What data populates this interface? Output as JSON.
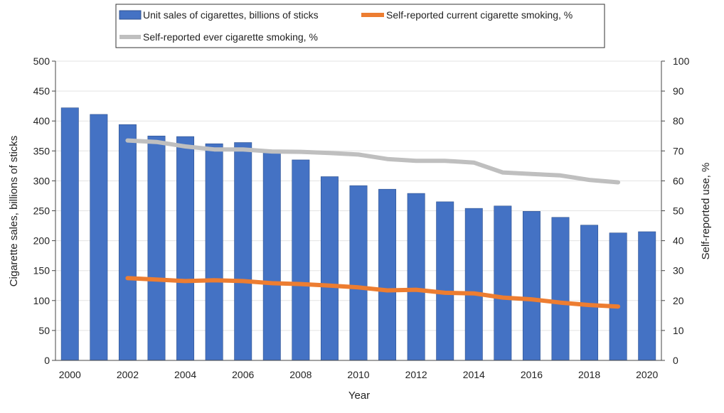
{
  "chart_data": {
    "type": "bar",
    "title": "",
    "xlabel": "Year",
    "ylabel_left": "Cigarette sales, billions of sticks",
    "ylabel_right": "Self-reported use, %",
    "ylim_left": [
      0,
      500
    ],
    "ylim_right": [
      0,
      100
    ],
    "yticks_left": [
      "0",
      "50",
      "100",
      "150",
      "200",
      "250",
      "300",
      "350",
      "400",
      "450",
      "500"
    ],
    "yticks_right": [
      "0",
      "10",
      "20",
      "30",
      "40",
      "50",
      "60",
      "70",
      "80",
      "90",
      "100"
    ],
    "categories": [
      "2000",
      "2001",
      "2002",
      "2003",
      "2004",
      "2005",
      "2006",
      "2007",
      "2008",
      "2009",
      "2010",
      "2011",
      "2012",
      "2013",
      "2014",
      "2015",
      "2016",
      "2017",
      "2018",
      "2019",
      "2020"
    ],
    "xtick_labels": [
      "2000",
      "2002",
      "2004",
      "2006",
      "2008",
      "2010",
      "2012",
      "2014",
      "2016",
      "2018",
      "2020"
    ],
    "series": [
      {
        "name": "Unit sales of cigarettes, billions of sticks",
        "type": "bar",
        "axis": "left",
        "color": "#4472C4",
        "values": [
          422,
          411,
          394,
          375,
          374,
          362,
          364,
          351,
          335,
          307,
          292,
          286,
          279,
          265,
          254,
          258,
          249,
          239,
          226,
          213,
          215
        ]
      },
      {
        "name": "Self-reported current cigarette smoking, %",
        "type": "line",
        "axis": "right",
        "color": "#ED7D31",
        "x": [
          "2002",
          "2003",
          "2004",
          "2005",
          "2006",
          "2007",
          "2008",
          "2009",
          "2010",
          "2011",
          "2012",
          "2013",
          "2014",
          "2015",
          "2016",
          "2017",
          "2018",
          "2019"
        ],
        "values": [
          27.5,
          27.0,
          26.5,
          26.8,
          26.5,
          25.8,
          25.5,
          25.0,
          24.4,
          23.4,
          23.6,
          22.6,
          22.4,
          21.0,
          20.4,
          19.3,
          18.5,
          18.0
        ]
      },
      {
        "name": "Self-reported ever cigarette smoking, %",
        "type": "line",
        "axis": "right",
        "color": "#BFBFBF",
        "x": [
          "2002",
          "2003",
          "2004",
          "2005",
          "2006",
          "2007",
          "2008",
          "2009",
          "2010",
          "2011",
          "2012",
          "2013",
          "2014",
          "2015",
          "2016",
          "2017",
          "2018",
          "2019"
        ],
        "values": [
          73.5,
          73.0,
          71.5,
          70.5,
          70.5,
          69.8,
          69.7,
          69.3,
          68.8,
          67.3,
          66.7,
          66.7,
          66.1,
          62.8,
          62.3,
          61.8,
          60.3,
          59.5
        ]
      }
    ],
    "legend_position": "top-left",
    "grid": true
  }
}
